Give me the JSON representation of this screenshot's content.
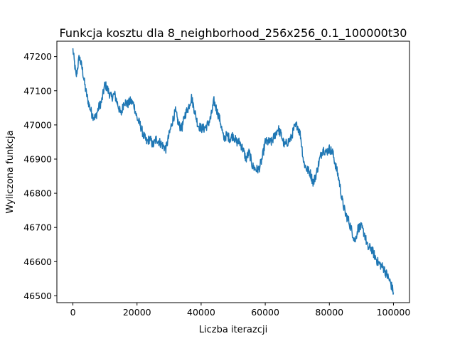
{
  "chart_data": {
    "type": "line",
    "title": "Funkcja kosztu dla 8_neighborhood_256x256_0.1_100000t30",
    "xlabel": "Liczba iterazcji",
    "ylabel": "Wyliczona funkcja",
    "xlim": [
      -5000,
      105000
    ],
    "ylim": [
      46480,
      47245
    ],
    "xticks": [
      0,
      20000,
      40000,
      60000,
      80000,
      100000
    ],
    "xtick_labels": [
      "0",
      "20000",
      "40000",
      "60000",
      "80000",
      "100000"
    ],
    "yticks": [
      46500,
      46600,
      46700,
      46800,
      46900,
      47000,
      47100,
      47200
    ],
    "ytick_labels": [
      "46500",
      "46600",
      "46700",
      "46800",
      "46900",
      "47000",
      "47100",
      "47200"
    ],
    "grid": false,
    "legend": "none",
    "series": [
      {
        "color": "#1f77b4",
        "x": [
          0,
          1000,
          2000,
          3000,
          4000,
          5000,
          6000,
          7000,
          8000,
          9000,
          10000,
          11000,
          12000,
          13000,
          14000,
          15000,
          16000,
          17000,
          18000,
          19000,
          20000,
          21000,
          22000,
          23000,
          24000,
          25000,
          26000,
          27000,
          28000,
          29000,
          30000,
          31000,
          32000,
          33000,
          34000,
          35000,
          36000,
          37000,
          38000,
          39000,
          40000,
          41000,
          42000,
          43000,
          44000,
          45000,
          46000,
          47000,
          48000,
          49000,
          50000,
          51000,
          52000,
          53000,
          54000,
          55000,
          56000,
          57000,
          58000,
          59000,
          60000,
          61000,
          62000,
          63000,
          64000,
          65000,
          66000,
          67000,
          68000,
          69000,
          70000,
          71000,
          72000,
          73000,
          74000,
          75000,
          76000,
          77000,
          78000,
          79000,
          80000,
          81000,
          82000,
          83000,
          84000,
          85000,
          86000,
          87000,
          88000,
          89000,
          90000,
          91000,
          92000,
          93000,
          94000,
          95000,
          96000,
          97000,
          98000,
          99000,
          100000
        ],
        "y": [
          47220,
          47140,
          47200,
          47160,
          47100,
          47060,
          47030,
          47020,
          47050,
          47070,
          47120,
          47100,
          47080,
          47090,
          47060,
          47030,
          47070,
          47060,
          47070,
          47060,
          47020,
          47000,
          46970,
          46950,
          46960,
          46940,
          46960,
          46950,
          46940,
          46930,
          46970,
          47010,
          47040,
          47000,
          46990,
          47030,
          47050,
          47080,
          47040,
          47000,
          46990,
          46990,
          47000,
          47020,
          47070,
          47040,
          47010,
          46960,
          46970,
          46960,
          46970,
          46950,
          46950,
          46930,
          46900,
          46920,
          46880,
          46870,
          46870,
          46900,
          46950,
          46950,
          46950,
          46970,
          46990,
          46970,
          46940,
          46950,
          46960,
          46990,
          47000,
          46970,
          46890,
          46870,
          46860,
          46830,
          46860,
          46900,
          46930,
          46920,
          46930,
          46920,
          46880,
          46840,
          46780,
          46740,
          46720,
          46690,
          46660,
          46700,
          46700,
          46680,
          46640,
          46640,
          46620,
          46600,
          46590,
          46580,
          46560,
          46540,
          46510
        ]
      }
    ]
  }
}
